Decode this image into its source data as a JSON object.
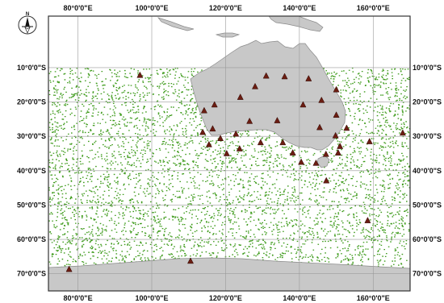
{
  "map": {
    "lon_ticks": [
      "80°0'0\"E",
      "100°0'0\"E",
      "120°0'0\"E",
      "140°0'0\"E",
      "160°0'0\"E"
    ],
    "lat_ticks": [
      "10°0'0\"S",
      "20°0'0\"S",
      "30°0'0\"S",
      "40°0'0\"S",
      "50°0'0\"S",
      "60°0'0\"S",
      "70°0'0\"S"
    ],
    "north_arrow": {
      "icon": "north-arrow-icon",
      "label": "N"
    },
    "colors": {
      "land": "#c8c8c8",
      "land_stroke": "#8a8a8a",
      "sample_points": "#3f9b1c",
      "stations": "#6b1d12",
      "graticule": "#9a9a9a",
      "frame": "#333333"
    },
    "layers": [
      {
        "name": "sample-points",
        "symbol": "dot",
        "color": "#3f9b1c"
      },
      {
        "name": "stations",
        "symbol": "triangle",
        "color": "#6b1d12"
      }
    ],
    "extent": {
      "lon": [
        72,
        170
      ],
      "lat": [
        -75,
        5
      ]
    },
    "stations": [
      [
        96.8,
        -12.2
      ],
      [
        131,
        -12.4
      ],
      [
        136,
        -12.6
      ],
      [
        142.5,
        -13.2
      ],
      [
        114.2,
        -22.5
      ],
      [
        117,
        -20.8
      ],
      [
        124,
        -18.6
      ],
      [
        128,
        -15.5
      ],
      [
        141,
        -20.8
      ],
      [
        146,
        -19.5
      ],
      [
        150,
        -16.4
      ],
      [
        134,
        -25.4
      ],
      [
        113.8,
        -28.8
      ],
      [
        116.5,
        -27.8
      ],
      [
        118.6,
        -30.6
      ],
      [
        122.8,
        -29.3
      ],
      [
        126.5,
        -25.6
      ],
      [
        120.3,
        -35
      ],
      [
        115.5,
        -32.4
      ],
      [
        123.8,
        -33.6
      ],
      [
        129.5,
        -31.8
      ],
      [
        135.5,
        -31.8
      ],
      [
        138.2,
        -34.8
      ],
      [
        140.5,
        -37.5
      ],
      [
        144.5,
        -37.8
      ],
      [
        147.2,
        -35.2
      ],
      [
        145.5,
        -27.4
      ],
      [
        149.8,
        -29.8
      ],
      [
        152.8,
        -27.6
      ],
      [
        151,
        -32.9
      ],
      [
        150.5,
        -34.8
      ],
      [
        150,
        -23.8
      ],
      [
        147.3,
        -42.9
      ],
      [
        159,
        -31.5
      ],
      [
        168,
        -29
      ],
      [
        158.5,
        -54.5
      ],
      [
        77.6,
        -68.7
      ],
      [
        110.5,
        -66.3
      ]
    ]
  }
}
